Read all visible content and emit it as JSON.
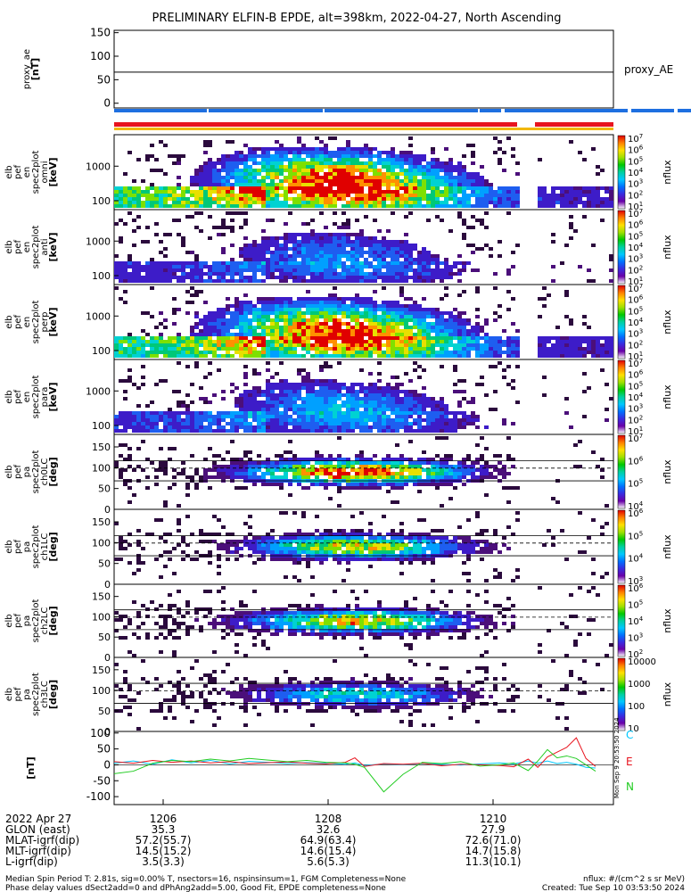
{
  "title": "PRELIMINARY ELFIN-B EPDE, alt=398km, 2022-04-27, North Ascending",
  "colors": {
    "spin_bar": "#1e6fe0",
    "phase_bar": "#e8141e",
    "quality_bar": "#f2b800",
    "field_C": "#00c8ff",
    "field_E": "#e8141e",
    "field_N": "#22cc22"
  },
  "chart_data": [
    {
      "type": "line",
      "panel": "proxy_ae",
      "ylabel": [
        "proxy_ae",
        "[nT]"
      ],
      "legend": "proxy_AE",
      "yticks": [
        "150",
        "100",
        "50",
        "0"
      ],
      "ylim": [
        -10,
        155
      ],
      "x": [
        0,
        1
      ],
      "series": [
        {
          "values": [
            66,
            66
          ]
        }
      ]
    },
    {
      "type": "heatmap",
      "panel": "en_omni",
      "ylabel": [
        "elb",
        "pef",
        "en",
        "spec2plot",
        "omni",
        "[keV]"
      ],
      "yticks": [
        "1000",
        "100"
      ],
      "scale": "log",
      "colorbar_label": "nflux",
      "colorbar_ticks": [
        "10^7",
        "10^6",
        "10^5",
        "10^4",
        "10^3",
        "10^2",
        "10^1"
      ]
    },
    {
      "type": "heatmap",
      "panel": "en_anti",
      "ylabel": [
        "elb",
        "pef",
        "en",
        "spec2plot",
        "anti",
        "[keV]"
      ],
      "yticks": [
        "1000",
        "100"
      ],
      "scale": "log",
      "colorbar_label": "nflux",
      "colorbar_ticks": [
        "10^7",
        "10^6",
        "10^5",
        "10^4",
        "10^3",
        "10^2",
        "10^1"
      ]
    },
    {
      "type": "heatmap",
      "panel": "en_perp",
      "ylabel": [
        "elb",
        "pef",
        "en",
        "spec2plot",
        "perp",
        "[keV]"
      ],
      "yticks": [
        "1000",
        "100"
      ],
      "scale": "log",
      "colorbar_label": "nflux",
      "colorbar_ticks": [
        "10^7",
        "10^6",
        "10^5",
        "10^4",
        "10^3",
        "10^2",
        "10^1"
      ]
    },
    {
      "type": "heatmap",
      "panel": "en_para",
      "ylabel": [
        "elb",
        "pef",
        "en",
        "spec2plot",
        "para",
        "[keV]"
      ],
      "yticks": [
        "1000",
        "100"
      ],
      "scale": "log",
      "colorbar_label": "nflux",
      "colorbar_ticks": [
        "10^7",
        "10^6",
        "10^5",
        "10^4",
        "10^3",
        "10^2",
        "10^1"
      ]
    },
    {
      "type": "heatmap",
      "panel": "pa_ch0",
      "ylabel": [
        "elb",
        "pef",
        "pa",
        "spec2plot",
        "ch0LC",
        "[deg]"
      ],
      "yticks": [
        "150",
        "100",
        "50",
        "0"
      ],
      "ylim": [
        0,
        180
      ],
      "colorbar_label": "nflux",
      "colorbar_ticks": [
        "10^7",
        "10^6",
        "10^5",
        "10^4"
      ]
    },
    {
      "type": "heatmap",
      "panel": "pa_ch1",
      "ylabel": [
        "elb",
        "pef",
        "pa",
        "spec2plot",
        "ch1LC",
        "[deg]"
      ],
      "yticks": [
        "150",
        "100",
        "50",
        "0"
      ],
      "ylim": [
        0,
        180
      ],
      "colorbar_label": "nflux",
      "colorbar_ticks": [
        "10^6",
        "10^5",
        "10^4",
        "10^3"
      ]
    },
    {
      "type": "heatmap",
      "panel": "pa_ch2",
      "ylabel": [
        "elb",
        "pef",
        "pa",
        "spec2plot",
        "ch2LC",
        "[deg]"
      ],
      "yticks": [
        "150",
        "100",
        "50",
        "0"
      ],
      "ylim": [
        0,
        180
      ],
      "colorbar_label": "nflux",
      "colorbar_ticks": [
        "10^6",
        "10^5",
        "10^4",
        "10^3",
        "10^2"
      ]
    },
    {
      "type": "heatmap",
      "panel": "pa_ch3",
      "ylabel": [
        "elb",
        "pef",
        "pa",
        "spec2plot",
        "ch3LC",
        "[deg]"
      ],
      "yticks": [
        "150",
        "100",
        "50",
        "0"
      ],
      "ylim": [
        0,
        180
      ],
      "colorbar_label": "nflux",
      "colorbar_ticks": [
        "10000",
        "1000",
        "100",
        "10"
      ]
    },
    {
      "type": "line",
      "panel": "fgm",
      "ylabel": [
        "[nT]"
      ],
      "yticks": [
        "100",
        "50",
        "0",
        "-50",
        "-100"
      ],
      "ylim": [
        -125,
        105
      ],
      "legend": [
        "C",
        "E",
        "N"
      ],
      "x": [
        0,
        0.04,
        0.08,
        0.12,
        0.16,
        0.2,
        0.24,
        0.28,
        0.32,
        0.36,
        0.4,
        0.44,
        0.48,
        0.5,
        0.52,
        0.56,
        0.6,
        0.64,
        0.68,
        0.72,
        0.76,
        0.8,
        0.83,
        0.86,
        0.88,
        0.9,
        0.92,
        0.94,
        0.96,
        0.98,
        1.0
      ],
      "series": [
        {
          "name": "C",
          "values": [
            5,
            12,
            2,
            16,
            6,
            14,
            3,
            11,
            8,
            4,
            7,
            5,
            2,
            6,
            -2,
            3,
            1,
            4,
            2,
            -1,
            3,
            6,
            3,
            12,
            5,
            12,
            4,
            8,
            2,
            -8,
            -10
          ]
        },
        {
          "name": "E",
          "values": [
            10,
            5,
            14,
            8,
            12,
            6,
            10,
            4,
            7,
            9,
            5,
            3,
            8,
            22,
            -5,
            4,
            2,
            5,
            -3,
            2,
            0,
            -2,
            -6,
            18,
            -8,
            25,
            40,
            55,
            85,
            20,
            -5
          ]
        },
        {
          "name": "N",
          "values": [
            -28,
            -20,
            5,
            14,
            10,
            18,
            12,
            20,
            15,
            10,
            14,
            8,
            6,
            2,
            -8,
            -85,
            -30,
            8,
            4,
            10,
            -4,
            0,
            6,
            -18,
            12,
            48,
            22,
            28,
            20,
            0,
            -20
          ]
        }
      ]
    }
  ],
  "time_axis": {
    "ticks": [
      "1206",
      "1208",
      "1210"
    ],
    "rows": [
      {
        "label": "2022 Apr 27",
        "values": [
          "",
          "",
          ""
        ]
      },
      {
        "label": "GLON (east)",
        "values": [
          "35.3",
          "32.6",
          "27.9"
        ]
      },
      {
        "label": "MLAT-igrf(dip)",
        "values": [
          "57.2(55.7)",
          "64.9(63.4)",
          "72.6(71.0)"
        ]
      },
      {
        "label": "MLT-igrf(dip)",
        "values": [
          "14.5(15.2)",
          "14.6(15.4)",
          "14.7(15.8)"
        ]
      },
      {
        "label": "L-igrf(dip)",
        "values": [
          "3.5(3.3)",
          "5.6(5.3)",
          "11.3(10.1)"
        ]
      }
    ]
  },
  "footer": {
    "line1": "Median Spin Period T: 2.81s, sig=0.00% T, nsectors=16, nspinsinsum=1, FGM Completeness=None",
    "line2": "Phase delay values dSect2add=0 and dPhAng2add=5.00, Good Fit, EPDE completeness=None",
    "units": "nflux: #/(cm^2 s sr MeV)",
    "created": "Created: Tue Sep 10 03:53:50 2024"
  },
  "side_stamp": "Mon Sep 9 20:53:50 2024"
}
